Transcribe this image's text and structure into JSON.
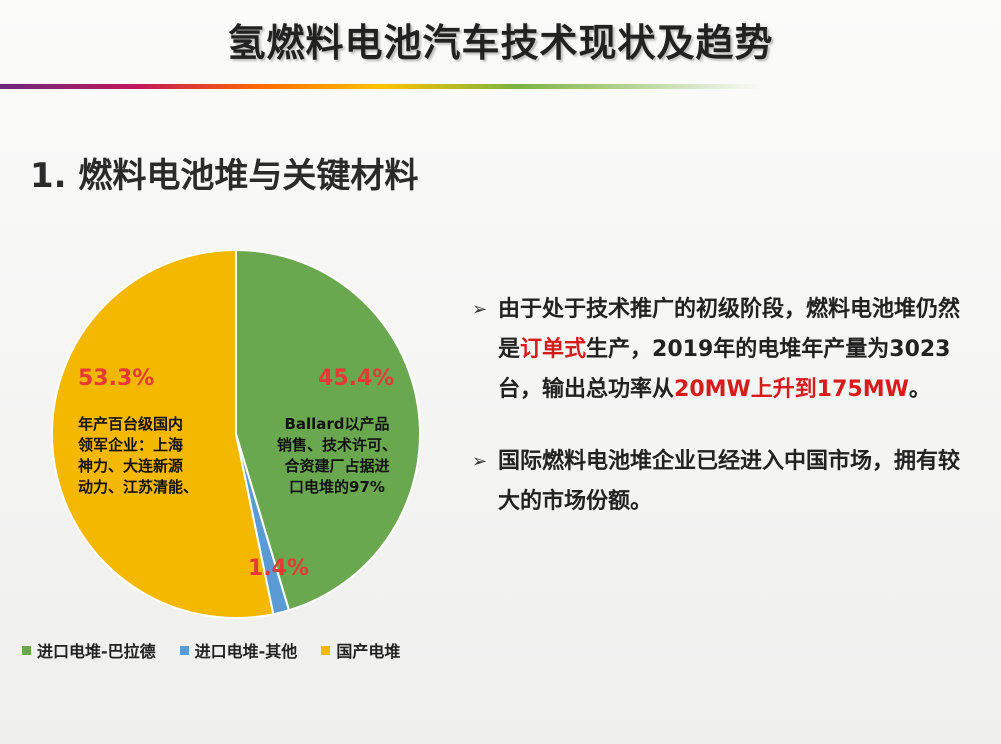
{
  "slide": {
    "title": "氢燃料电池汽车技术现状及趋势",
    "section_title": "1. 燃料电池堆与关键材料"
  },
  "chart_data": {
    "type": "pie",
    "slices": [
      {
        "name": "进口电堆-巴拉德",
        "value": 45.4,
        "label": "45.4%",
        "color": "#6aa84f"
      },
      {
        "name": "进口电堆-其他",
        "value": 1.4,
        "label": "1.4%",
        "color": "#5b9bd5"
      },
      {
        "name": "国产电堆",
        "value": 53.3,
        "label": "53.3%",
        "color": "#f5b800"
      }
    ],
    "annotations": {
      "green": [
        "Ballard以产品",
        "销售、技术许可、",
        "合资建厂占据进",
        "口电堆的97%"
      ],
      "yellow": [
        "年产百台级国内",
        "领军企业：上海",
        "神力、大连新源",
        "动力、江苏清能、"
      ]
    },
    "legend_position": "bottom-left"
  },
  "bullets": [
    {
      "parts": [
        {
          "text": "由于处于技术推广的初级阶段，燃料电池堆仍然是",
          "red": false
        },
        {
          "text": "订单式",
          "red": true
        },
        {
          "text": "生产，2019年的电堆年产量为3023台，输出总功率从",
          "red": false
        },
        {
          "text": "20MW上升到175MW",
          "red": true
        },
        {
          "text": "。",
          "red": false
        }
      ]
    },
    {
      "parts": [
        {
          "text": "国际燃料电池堆企业已经进入中国市场，拥有较大的市场份额。",
          "red": false
        }
      ]
    }
  ],
  "icons": {
    "bullet": "arrow-bullet-icon"
  }
}
